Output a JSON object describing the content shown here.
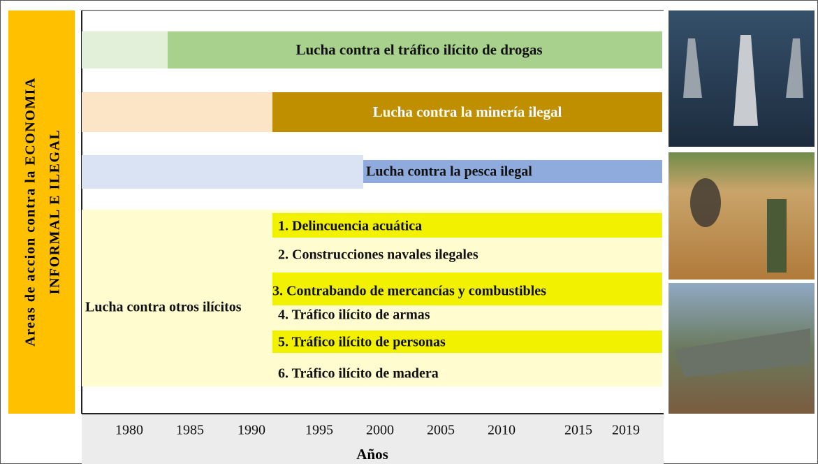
{
  "side_label": {
    "line1": "Areas de accion contra la ECONOMIA",
    "line2": "INFORMAL E ILEGAL"
  },
  "rows": [
    {
      "label": "Lucha contra el tráfico ilícito de drogas"
    },
    {
      "label": "Lucha contra la minería ilegal"
    },
    {
      "label": "Lucha contra la pesca ilegal"
    },
    {
      "label": "Lucha contra otros ilícitos",
      "items": [
        "1.  Delincuencia acuática",
        "2. Construcciones navales ilegales",
        "3. Contrabando de mercancías y combustibles",
        "4. Tráfico ilícito de armas",
        "5. Tráfico ilícito de personas",
        "6. Tráfico ilícito de madera"
      ]
    }
  ],
  "x_axis": {
    "ticks": [
      "1980",
      "1985",
      "1990",
      "1995",
      "2000",
      "2005",
      "2010",
      "2015",
      "2019"
    ],
    "label": "Años"
  }
}
